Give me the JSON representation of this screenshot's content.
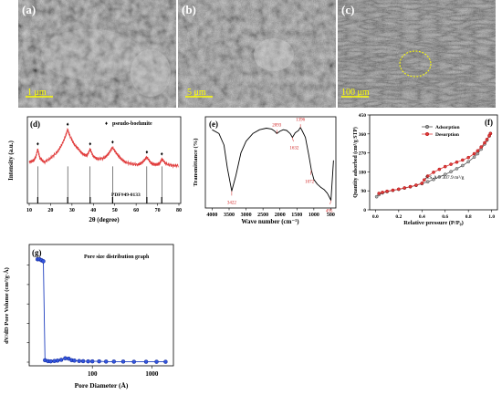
{
  "sem": {
    "a": {
      "letter": "(a)",
      "scale": "1 μm"
    },
    "b": {
      "letter": "(b)",
      "scale": "5 μm"
    },
    "c": {
      "letter": "(c)",
      "scale": "100 μm"
    }
  },
  "panel_d": {
    "letter": "(d)",
    "legend_mark": "♦",
    "legend": "pseudo-boehmite",
    "ref_label": "PDF#49-0133",
    "star": "♦"
  },
  "panel_e": {
    "letter": "(e)"
  },
  "panel_f": {
    "letter": "(f)",
    "legend_adsorption": "Adsorption",
    "legend_desorption": "Desorption",
    "annotation": "S.S.A = 307.9 m²/g",
    "colors": {
      "adsorption": "#555555",
      "desorption": "#e03a3a"
    }
  },
  "panel_g": {
    "letter": "(g)",
    "title": "Pore size distribution graph",
    "color": "#1f3fbf"
  },
  "chart_data": [
    {
      "type": "line",
      "panel": "d",
      "xlabel": "2θ (degree)",
      "ylabel": "Intensity (a.u.)",
      "xlim": [
        10,
        80
      ],
      "xticks": [
        10,
        20,
        30,
        40,
        50,
        60,
        70,
        80
      ],
      "peaks_x": [
        14,
        28,
        38.5,
        49,
        65,
        72
      ],
      "reference_lines_x": [
        14,
        28,
        38.5,
        49,
        65,
        72
      ],
      "series": [
        {
          "x": [
            10,
            12,
            13,
            14,
            15,
            17,
            20,
            23,
            25,
            27,
            28,
            29,
            31,
            33,
            35,
            37,
            38.5,
            40,
            42,
            45,
            47,
            49,
            51,
            53,
            55,
            58,
            61,
            63,
            65,
            67,
            69,
            71,
            72,
            74,
            77,
            80
          ],
          "y": [
            0.5,
            0.52,
            0.56,
            0.66,
            0.55,
            0.5,
            0.55,
            0.62,
            0.7,
            0.82,
            0.9,
            0.82,
            0.72,
            0.66,
            0.6,
            0.58,
            0.66,
            0.57,
            0.54,
            0.55,
            0.6,
            0.68,
            0.6,
            0.54,
            0.5,
            0.48,
            0.47,
            0.5,
            0.56,
            0.49,
            0.47,
            0.48,
            0.54,
            0.48,
            0.46,
            0.46
          ]
        }
      ]
    },
    {
      "type": "line",
      "panel": "e",
      "xlabel": "Wave number (cm⁻¹)",
      "ylabel": "Transmittance (%)",
      "xlim": [
        4000,
        500
      ],
      "xticks": [
        4000,
        3500,
        3000,
        2500,
        2000,
        1500,
        1000,
        500
      ],
      "peak_labels": [
        {
          "x": 3422,
          "label": "3422"
        },
        {
          "x": 2093,
          "label": "2093"
        },
        {
          "x": 1632,
          "label": "1632"
        },
        {
          "x": 1396,
          "label": "1396"
        },
        {
          "x": 1072,
          "label": "1072"
        },
        {
          "x": 495,
          "label": "495"
        }
      ],
      "series": [
        {
          "x": [
            4000,
            3800,
            3650,
            3550,
            3422,
            3300,
            3150,
            3000,
            2800,
            2600,
            2400,
            2250,
            2150,
            2093,
            2000,
            1900,
            1800,
            1700,
            1632,
            1550,
            1450,
            1396,
            1350,
            1250,
            1150,
            1072,
            1000,
            900,
            800,
            700,
            600,
            495,
            420
          ],
          "y": [
            0.95,
            0.9,
            0.75,
            0.45,
            0.15,
            0.35,
            0.65,
            0.8,
            0.9,
            0.95,
            0.97,
            0.96,
            0.93,
            0.9,
            0.93,
            0.95,
            0.94,
            0.9,
            0.85,
            0.91,
            0.94,
            0.98,
            0.94,
            0.85,
            0.62,
            0.42,
            0.3,
            0.24,
            0.2,
            0.17,
            0.12,
            0.03,
            0.55
          ]
        }
      ]
    },
    {
      "type": "line",
      "panel": "f",
      "xlabel": "Relative pressure (P/P₀)",
      "ylabel": "Quantity adsorbed (cm³/g STP)",
      "xlim": [
        -0.05,
        1.05
      ],
      "ylim": [
        0,
        450
      ],
      "xticks": [
        0.0,
        0.2,
        0.4,
        0.6,
        0.8,
        1.0
      ],
      "yticks": [
        0,
        90,
        180,
        270,
        360,
        450
      ],
      "series": [
        {
          "name": "Adsorption",
          "x": [
            0.01,
            0.03,
            0.06,
            0.1,
            0.15,
            0.2,
            0.25,
            0.3,
            0.35,
            0.4,
            0.45,
            0.5,
            0.55,
            0.6,
            0.65,
            0.7,
            0.75,
            0.8,
            0.85,
            0.88,
            0.91,
            0.94,
            0.96,
            0.98,
            0.99
          ],
          "y": [
            62,
            72,
            80,
            86,
            92,
            97,
            103,
            109,
            116,
            124,
            133,
            144,
            156,
            168,
            181,
            195,
            210,
            228,
            250,
            266,
            288,
            312,
            330,
            350,
            362
          ]
        },
        {
          "name": "Desorption",
          "x": [
            0.99,
            0.98,
            0.96,
            0.94,
            0.91,
            0.88,
            0.85,
            0.8,
            0.75,
            0.7,
            0.65,
            0.6,
            0.55,
            0.5,
            0.45,
            0.42,
            0.4,
            0.35,
            0.3,
            0.25,
            0.2,
            0.15,
            0.1,
            0.06,
            0.03
          ],
          "y": [
            362,
            352,
            334,
            318,
            298,
            280,
            266,
            248,
            236,
            226,
            216,
            205,
            192,
            178,
            160,
            142,
            126,
            117,
            110,
            104,
            98,
            93,
            88,
            83,
            78
          ]
        }
      ]
    },
    {
      "type": "scatter",
      "panel": "g",
      "xlabel": "Pore Diameter (Å)",
      "ylabel": "dV/dD Pore Volume (cm³/g·Å)",
      "xscale": "log",
      "xlim": [
        10,
        2000
      ],
      "xticks": [
        100,
        1000
      ],
      "ylim": [
        0,
        0.55
      ],
      "yticks": [
        0.0,
        0.1,
        0.2,
        0.3,
        0.4,
        0.5
      ],
      "series": [
        {
          "name": "",
          "x": [
            12,
            13,
            14,
            15,
            16,
            18,
            20,
            23,
            26,
            30,
            35,
            40,
            45,
            50,
            60,
            70,
            85,
            100,
            130,
            170,
            230,
            330,
            500,
            800,
            1200,
            1700
          ],
          "y": [
            0.53,
            0.53,
            0.525,
            0.52,
            0.01,
            0.005,
            0.004,
            0.006,
            0.008,
            0.012,
            0.02,
            0.018,
            0.01,
            0.008,
            0.006,
            0.005,
            0.004,
            0.004,
            0.004,
            0.003,
            0.003,
            0.003,
            0.002,
            0.002,
            0.002,
            0.002
          ]
        }
      ]
    }
  ]
}
